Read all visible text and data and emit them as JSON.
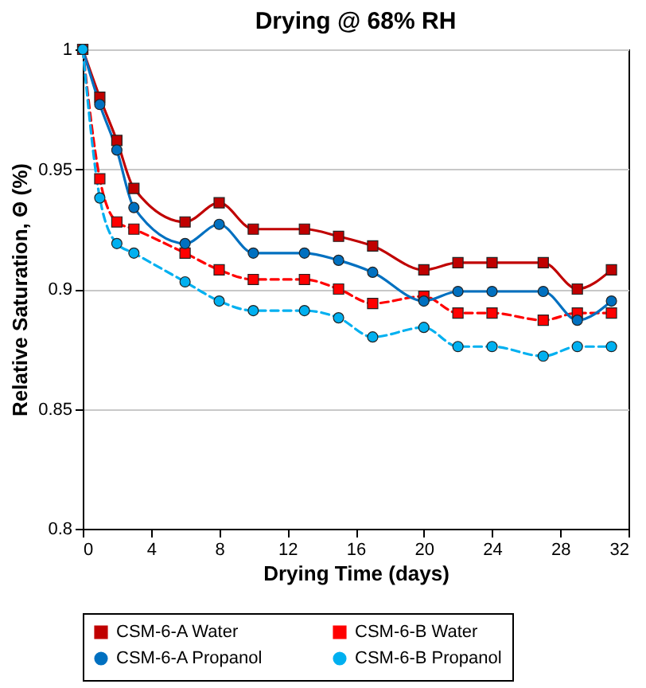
{
  "chart_data": {
    "type": "line",
    "title": "Drying @ 68% RH",
    "xlabel": "Drying Time (days)",
    "ylabel": "Relative Saturation, Θ (%)",
    "x": [
      0,
      1,
      2,
      3,
      6,
      8,
      10,
      13,
      15,
      17,
      20,
      22,
      24,
      27,
      29,
      31
    ],
    "series": [
      {
        "name": "CSM-6-A Water",
        "color": "#c00000",
        "marker": "square",
        "line_style": "solid",
        "values": [
          1,
          0.98,
          0.962,
          0.942,
          0.928,
          0.936,
          0.925,
          0.925,
          0.922,
          0.918,
          0.908,
          0.911,
          0.911,
          0.911,
          0.9,
          0.908
        ]
      },
      {
        "name": "CSM-6-B Water",
        "color": "#ff0000",
        "marker": "square",
        "line_style": "dashed",
        "values": [
          1,
          0.946,
          0.928,
          0.925,
          0.915,
          0.908,
          0.904,
          0.904,
          0.9,
          0.894,
          0.897,
          0.89,
          0.89,
          0.887,
          0.89,
          0.89
        ]
      },
      {
        "name": "CSM-6-A Propanol",
        "color": "#0070c0",
        "marker": "circle",
        "line_style": "solid",
        "values": [
          1,
          0.977,
          0.958,
          0.934,
          0.919,
          0.927,
          0.915,
          0.915,
          0.912,
          0.907,
          0.895,
          0.899,
          0.899,
          0.899,
          0.887,
          0.895
        ]
      },
      {
        "name": "CSM-6-B Propanol",
        "color": "#00b0f0",
        "marker": "circle",
        "line_style": "dashed",
        "values": [
          1,
          0.938,
          0.919,
          0.915,
          0.903,
          0.895,
          0.891,
          0.891,
          0.888,
          0.88,
          0.884,
          0.876,
          0.876,
          0.872,
          0.876,
          0.876
        ]
      }
    ],
    "xlim": [
      0,
      32
    ],
    "xticks": [
      0,
      4,
      8,
      12,
      16,
      20,
      24,
      28,
      32
    ],
    "ylim": [
      0.8,
      1
    ],
    "yticks": [
      0.8,
      0.85,
      0.9,
      0.95,
      1
    ],
    "grid": "y",
    "legend": "bottom"
  }
}
